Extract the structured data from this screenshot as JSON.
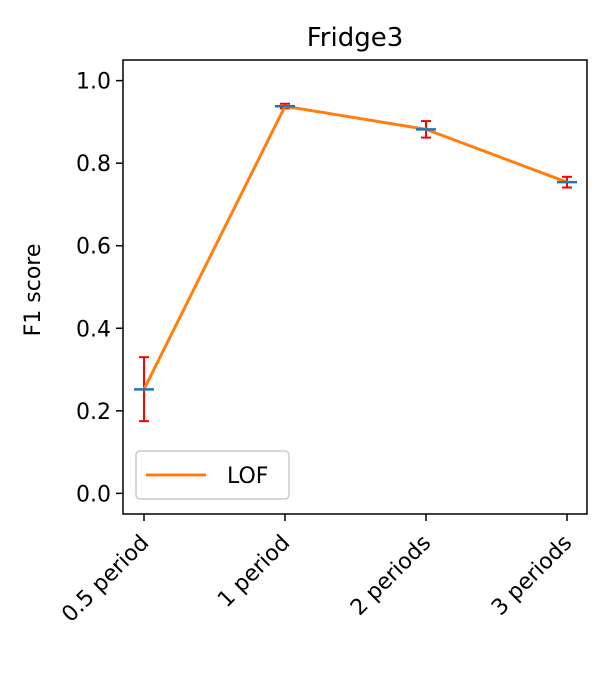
{
  "chart_data": {
    "type": "line",
    "title": "Fridge3",
    "xlabel": "",
    "ylabel": "F1 score",
    "categories": [
      "0.5 period",
      "1 period",
      "2 periods",
      "3 periods"
    ],
    "ylim": [
      -0.05,
      1.05
    ],
    "yticks": [
      "0.0",
      "0.2",
      "0.4",
      "0.6",
      "0.8",
      "1.0"
    ],
    "grid": false,
    "legend_position": "lower-left",
    "series": [
      {
        "name": "LOF",
        "values": [
          0.252,
          0.938,
          0.882,
          0.754
        ],
        "err_low": [
          0.175,
          0.933,
          0.862,
          0.741
        ],
        "err_high": [
          0.33,
          0.944,
          0.902,
          0.767
        ],
        "color": "#ff7f0e"
      }
    ],
    "errorbar_color": "#ff0000",
    "mean_marker_color": "#1f77b4"
  }
}
